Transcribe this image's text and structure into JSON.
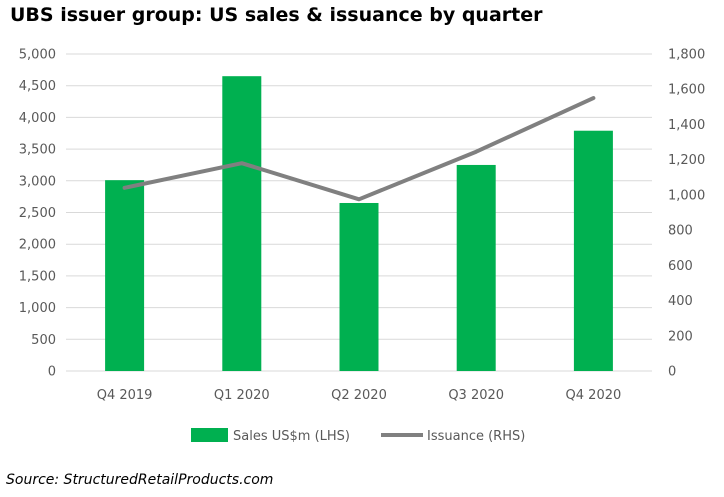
{
  "title": "UBS issuer group: US sales & issuance by quarter",
  "source": "Source: StructuredRetailProducts.com",
  "colors": {
    "bar": "#00b050",
    "line": "#808080",
    "grid": "#d9d9d9",
    "axis_text": "#595959"
  },
  "chart_data": {
    "type": "bar",
    "categories": [
      "Q4 2019",
      "Q1 2020",
      "Q2 2020",
      "Q3 2020",
      "Q4 2020"
    ],
    "series": [
      {
        "name": "Sales US$m (LHS)",
        "type": "bar",
        "axis": "left",
        "values": [
          3010,
          4650,
          2650,
          3250,
          3790
        ]
      },
      {
        "name": "Issuance (RHS)",
        "type": "line",
        "axis": "right",
        "values": [
          1040,
          1180,
          975,
          1245,
          1550
        ]
      }
    ],
    "ylim_left": [
      0,
      5000
    ],
    "yticks_left": [
      "0",
      "500",
      "1,000",
      "1,500",
      "2,000",
      "2,500",
      "3,000",
      "3,500",
      "4,000",
      "4,500",
      "5,000"
    ],
    "ylim_right": [
      0,
      1800
    ],
    "yticks_right": [
      "0",
      "200",
      "400",
      "600",
      "800",
      "1,000",
      "1,200",
      "1,400",
      "1,600",
      "1,800"
    ],
    "grid": true,
    "legend_position": "bottom"
  }
}
